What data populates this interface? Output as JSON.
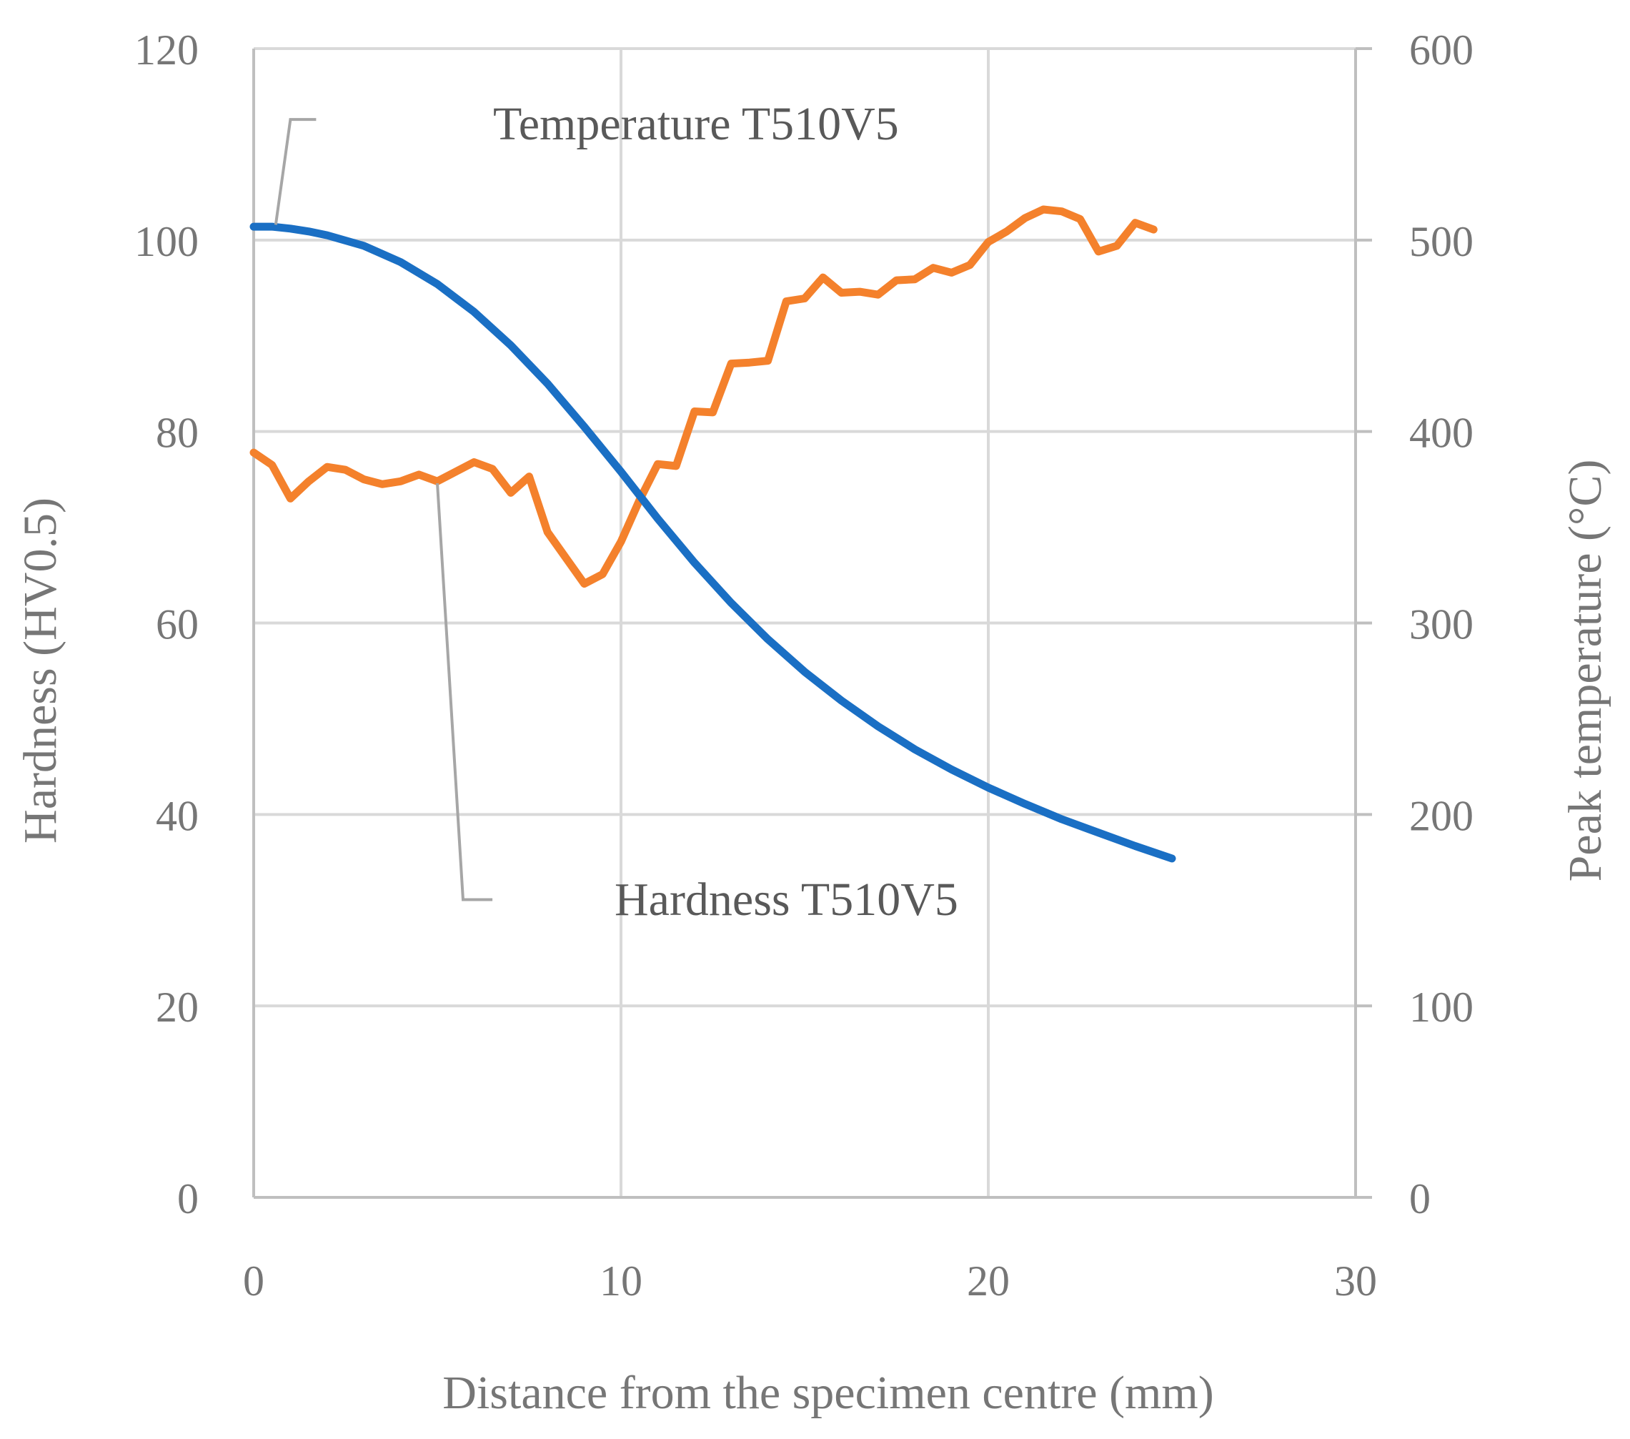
{
  "chart_data": {
    "type": "line",
    "xlabel": "Distance from the specimen centre (mm)",
    "ylabel": "Hardness (HV0.5)",
    "y2label": "Peak temperature (°C)",
    "xlim": [
      0,
      30
    ],
    "ylim": [
      0,
      120
    ],
    "y2lim": [
      0,
      600
    ],
    "xticks": [
      0,
      10,
      20,
      30
    ],
    "yticks": [
      0,
      20,
      40,
      60,
      80,
      100,
      120
    ],
    "y2ticks": [
      0,
      100,
      200,
      300,
      400,
      500,
      600
    ],
    "grid": true,
    "colors": {
      "hardness": "#f4812c",
      "temperature": "#1a6fc4",
      "grid": "#d9d9d9",
      "axis": "#bfbfbf",
      "leader": "#a6a6a6"
    },
    "series": [
      {
        "name": "Hardness T510V5",
        "axis": "left",
        "x": [
          0,
          0.5,
          1,
          1.5,
          2,
          2.5,
          3,
          3.5,
          4,
          4.5,
          5,
          5.5,
          6,
          6.5,
          7,
          7.5,
          8,
          8.5,
          9,
          9.5,
          10,
          10.5,
          11,
          11.5,
          12,
          12.5,
          13,
          13.5,
          14,
          14.5,
          15,
          15.5,
          16,
          16.5,
          17,
          17.5,
          18,
          18.5,
          19,
          19.5,
          20,
          20.5,
          21,
          21.5,
          22,
          22.5,
          23,
          23.5,
          24,
          24.5
        ],
        "values": [
          77.8,
          76.5,
          73,
          74.8,
          76.3,
          76,
          75,
          74.5,
          74.8,
          75.5,
          74.8,
          75.8,
          76.8,
          76.1,
          73.6,
          75.3,
          69.5,
          66.8,
          64.1,
          65.1,
          68.5,
          72.8,
          76.6,
          76.4,
          82.1,
          82,
          87.1,
          87.2,
          87.4,
          93.6,
          93.9,
          96.1,
          94.5,
          94.6,
          94.3,
          95.8,
          95.9,
          97.1,
          96.6,
          97.4,
          99.8,
          100.9,
          102.3,
          103.2,
          103,
          102.2,
          98.8,
          99.4,
          101.8,
          101.1
        ]
      },
      {
        "name": "Temperature T510V5",
        "axis": "right",
        "x": [
          0,
          0.5,
          1,
          1.5,
          2,
          3,
          4,
          5,
          6,
          7,
          8,
          9,
          10,
          11,
          12,
          13,
          14,
          15,
          16,
          17,
          18,
          19,
          20,
          21,
          22,
          23,
          24,
          25
        ],
        "values": [
          507,
          507,
          506,
          504.5,
          502.5,
          497,
          488.5,
          477,
          462.5,
          445,
          425,
          402.5,
          379,
          354.5,
          331.5,
          310.5,
          291.5,
          274.5,
          259.5,
          246,
          234,
          223.5,
          214,
          205.5,
          197.5,
          190.5,
          183.5,
          177
        ]
      }
    ],
    "annotations": [
      {
        "text": "Temperature T510V5",
        "series": "Temperature T510V5"
      },
      {
        "text": "Hardness T510V5",
        "series": "Hardness T510V5"
      }
    ]
  }
}
